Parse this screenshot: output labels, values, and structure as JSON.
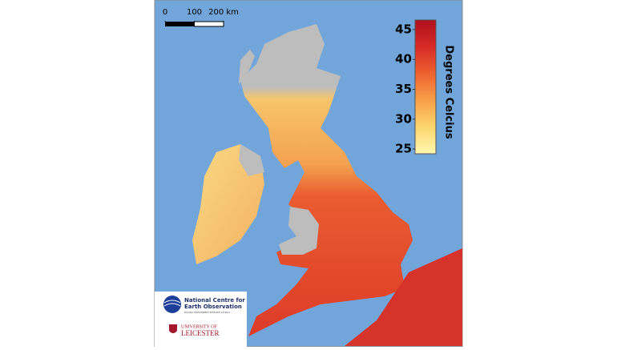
{
  "scale_bar": {
    "ticks": [
      0,
      100,
      {
        "value": 200,
        "label": "200 km"
      }
    ]
  },
  "colorbar": {
    "label": "Degrees Celcius",
    "lim": [
      24.2,
      46.6
    ],
    "ticks": [
      25,
      30,
      35,
      40,
      45
    ],
    "colors": [
      "#fff7b0",
      "#fdd66e",
      "#f9a04a",
      "#ee6230",
      "#d62a26",
      "#b0101e"
    ]
  },
  "logos": {
    "nceo_lines": [
      "National Centre for",
      "Earth Observation"
    ],
    "nceo_sub": "NATURAL ENVIRONMENT RESEARCH COUNCIL",
    "leicester_lines": [
      "UNIVERSITY OF",
      "LEICESTER"
    ]
  }
}
